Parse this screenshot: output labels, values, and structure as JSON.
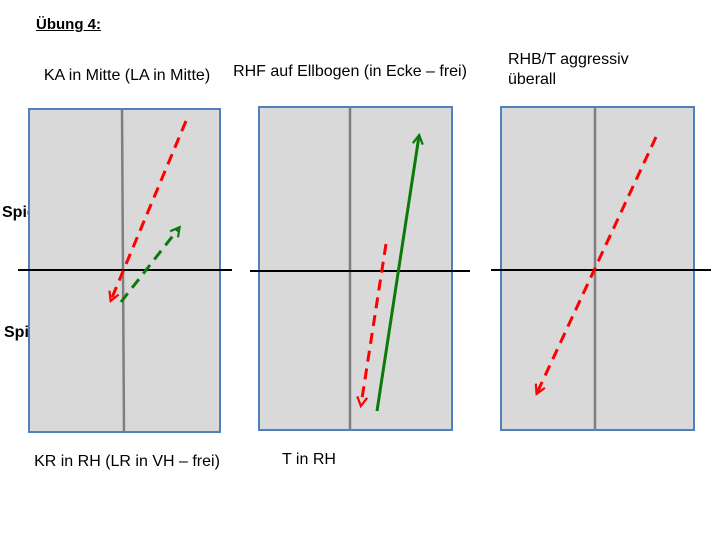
{
  "heading": "Übung 4:",
  "players": {
    "a": "Spieler A",
    "b": "Spieler B"
  },
  "tables": [
    {
      "top_caption": "KA in Mitte (LA in Mitte)",
      "bottom_caption": "KR in RH (LR in VH – frei)"
    },
    {
      "top_caption": "RHF auf Ellbogen (in Ecke – frei)",
      "bottom_caption": "T in RH"
    },
    {
      "top_caption": "RHB/T aggressiv überall",
      "bottom_caption": ""
    }
  ],
  "colors": {
    "table_fill": "#d9d9d9",
    "table_border": "#4f81bd",
    "center_line": "#7f7f7f",
    "net": "#000000",
    "red_arrow": "#ff0000",
    "green_arrow": "#0a7a0a"
  }
}
